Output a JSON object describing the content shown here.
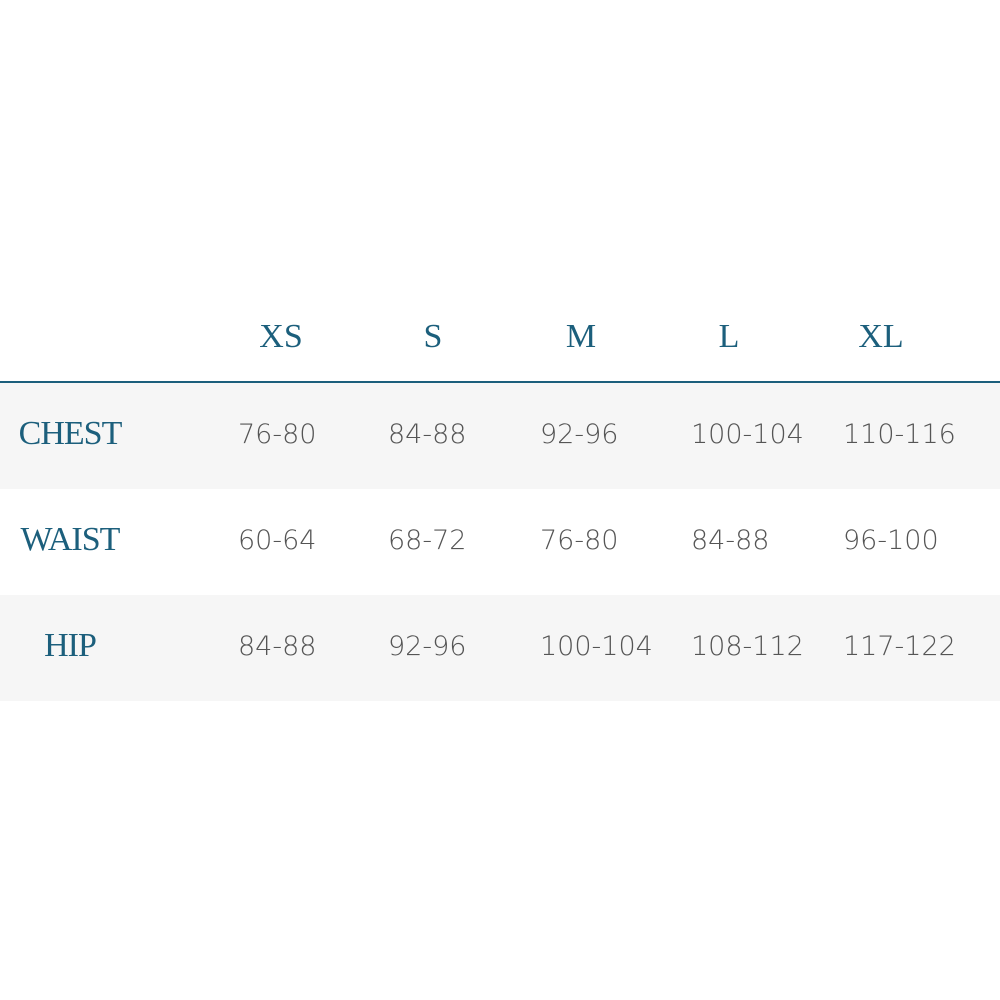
{
  "table": {
    "headers": [
      "XS",
      "S",
      "M",
      "L",
      "XL"
    ],
    "rows": [
      {
        "label": "CHEST",
        "cells": [
          "76-80",
          "84-88",
          "92-96",
          "100-104",
          "110-116"
        ]
      },
      {
        "label": "WAIST",
        "cells": [
          "60-64",
          "68-72",
          "76-80",
          "84-88",
          "96-100"
        ]
      },
      {
        "label": "HIP",
        "cells": [
          "84-88",
          "92-96",
          "100-104",
          "108-112",
          "117-122"
        ]
      }
    ]
  }
}
